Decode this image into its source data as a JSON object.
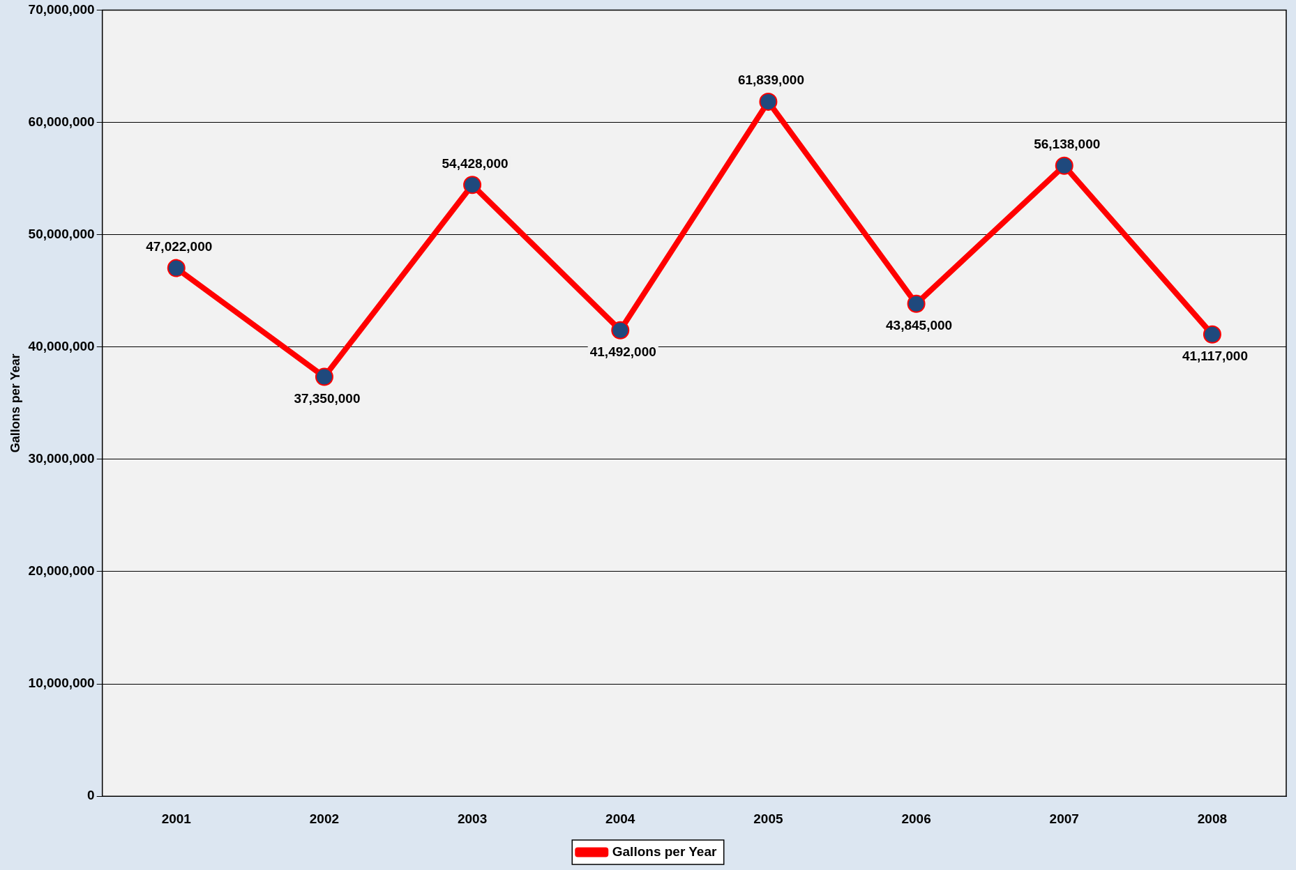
{
  "chart_data": {
    "type": "line",
    "ylabel": "Gallons per Year",
    "categories": [
      "2001",
      "2002",
      "2003",
      "2004",
      "2005",
      "2006",
      "2007",
      "2008"
    ],
    "series": [
      {
        "name": "Gallons per Year",
        "color": "#ff0000",
        "values": [
          47022000,
          37350000,
          54428000,
          41492000,
          61839000,
          43845000,
          56138000,
          41117000
        ],
        "value_labels": [
          "47,022,000",
          "37,350,000",
          "54,428,000",
          "41,492,000",
          "61,839,000",
          "43,845,000",
          "56,138,000",
          "41,117,000"
        ]
      }
    ],
    "ylim": [
      0,
      70000000
    ],
    "yticks": [
      {
        "value": 0,
        "label": "0"
      },
      {
        "value": 10000000,
        "label": "10,000,000"
      },
      {
        "value": 20000000,
        "label": "20,000,000"
      },
      {
        "value": 30000000,
        "label": "30,000,000"
      },
      {
        "value": 40000000,
        "label": "40,000,000"
      },
      {
        "value": 50000000,
        "label": "50,000,000"
      },
      {
        "value": 60000000,
        "label": "60,000,000"
      },
      {
        "value": 70000000,
        "label": "70,000,000"
      }
    ],
    "grid": "y",
    "legend": "bottom",
    "marker": "circle",
    "line_style": "solid"
  }
}
